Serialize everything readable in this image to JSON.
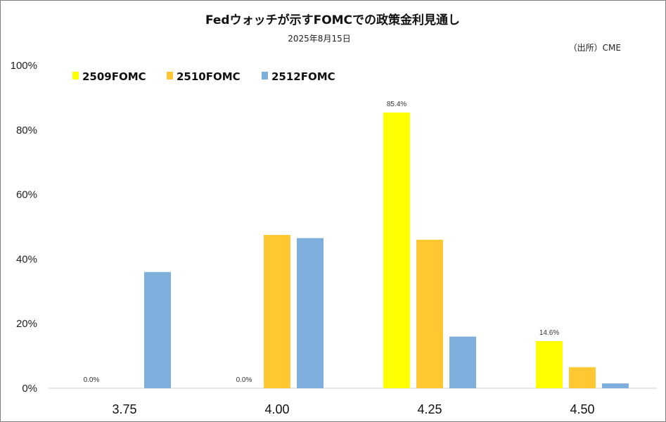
{
  "chart_data": {
    "type": "bar",
    "title": "Fedウォッチが示すFOMCでの政策金利見通し",
    "subtitle": "2025年8月15日",
    "source": "（出所）CME",
    "categories": [
      "3.75",
      "4.00",
      "4.25",
      "4.50"
    ],
    "series": [
      {
        "name": "2509FOMC",
        "color": "#ffff00",
        "values": [
          0.0,
          0.0,
          85.4,
          14.6
        ],
        "labels": [
          "0.0%",
          "0.0%",
          "85.4%",
          "14.6%"
        ]
      },
      {
        "name": "2510FOMC",
        "color": "#ffc832",
        "values": [
          0.0,
          47.5,
          46.0,
          6.5
        ]
      },
      {
        "name": "2512FOMC",
        "color": "#7eaedc",
        "values": [
          36.0,
          46.5,
          16.0,
          1.5
        ]
      }
    ],
    "ylim": [
      0,
      100
    ],
    "yticks": [
      0,
      20,
      40,
      60,
      80,
      100
    ],
    "ytick_labels": [
      "0%",
      "20%",
      "40%",
      "60%",
      "80%",
      "100%"
    ],
    "legend_position": "top-left",
    "grid": false
  }
}
